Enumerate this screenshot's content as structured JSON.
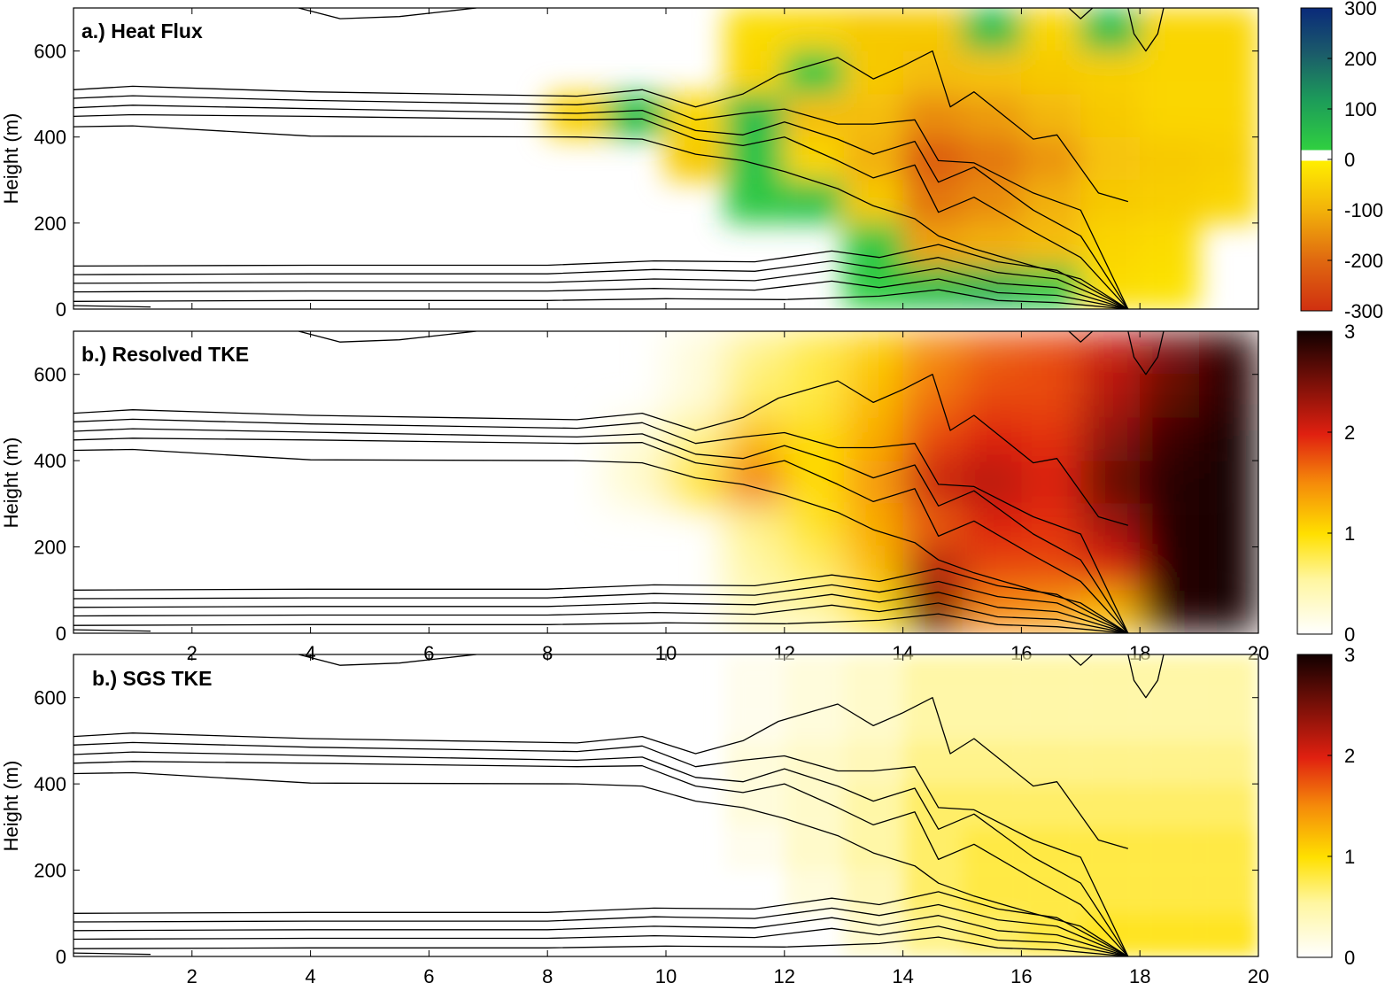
{
  "chart_data": [
    {
      "type": "heatmap",
      "title": "a.) Heat Flux",
      "ylabel": "Height (m)",
      "xlabel": "",
      "xlim": [
        0,
        20
      ],
      "ylim": [
        0,
        700
      ],
      "xticks": [],
      "yticks": [
        0,
        200,
        400,
        600
      ],
      "colorbar": {
        "scheme": "diverging-red-yellow-green-blue",
        "range": [
          -300,
          300
        ],
        "ticks": [
          300,
          200,
          100,
          0,
          -100,
          -200,
          -300
        ]
      },
      "field_x": [
        8.5,
        9.5,
        10.5,
        11.5,
        12.5,
        13.5,
        14.5,
        15.5,
        16.5,
        17.5,
        18.5,
        19.5
      ],
      "field_y": [
        50,
        150,
        250,
        350,
        450,
        550,
        650
      ],
      "field": [
        [
          0,
          0,
          0,
          0,
          0,
          10,
          40,
          60,
          20,
          -30,
          -20,
          0
        ],
        [
          0,
          0,
          0,
          0,
          0,
          20,
          -120,
          -100,
          -80,
          -40,
          -30,
          0
        ],
        [
          0,
          0,
          0,
          20,
          30,
          -60,
          -180,
          -150,
          -100,
          -60,
          -50,
          -40
        ],
        [
          0,
          0,
          -60,
          30,
          -40,
          -100,
          -220,
          -180,
          -140,
          -70,
          -60,
          -50
        ],
        [
          -50,
          40,
          -40,
          40,
          -80,
          -80,
          -150,
          -130,
          -90,
          -60,
          -40,
          -40
        ],
        [
          0,
          0,
          0,
          -40,
          20,
          -60,
          -80,
          -70,
          -60,
          -50,
          -40,
          -40
        ],
        [
          0,
          0,
          0,
          -30,
          -40,
          -60,
          -60,
          40,
          -40,
          40,
          -40,
          -40
        ]
      ]
    },
    {
      "type": "heatmap",
      "title": "b.) Resolved TKE",
      "ylabel": "Height (m)",
      "xlabel": "",
      "xlim": [
        0,
        20
      ],
      "ylim": [
        0,
        700
      ],
      "xticks": [
        2,
        4,
        6,
        8,
        10,
        12,
        14,
        16,
        18,
        20
      ],
      "yticks": [
        0,
        200,
        400,
        600
      ],
      "colorbar": {
        "scheme": "hot-reversed",
        "range": [
          0,
          3
        ],
        "ticks": [
          3,
          2,
          1,
          0
        ]
      },
      "field_x": [
        8.5,
        9.5,
        10.5,
        11.5,
        12.5,
        13.5,
        14.5,
        15.5,
        16.5,
        17.5,
        18.5,
        19.5
      ],
      "field_y": [
        50,
        150,
        250,
        350,
        450,
        550,
        650
      ],
      "field": [
        [
          0,
          0,
          0,
          0.4,
          0.5,
          0.9,
          2.6,
          1.5,
          1.4,
          1.2,
          2.9,
          3.0
        ],
        [
          0,
          0,
          0,
          0.5,
          0.7,
          1.2,
          2.2,
          1.8,
          1.8,
          2.0,
          2.9,
          3.0
        ],
        [
          0,
          0,
          0,
          0.6,
          0.9,
          1.3,
          1.7,
          2.0,
          1.9,
          2.3,
          2.9,
          3.0
        ],
        [
          0,
          0.3,
          0.9,
          1.6,
          1.0,
          1.4,
          2.1,
          2.2,
          2.0,
          2.6,
          2.9,
          3.0
        ],
        [
          0,
          0.2,
          0.6,
          1.2,
          1.0,
          1.3,
          1.8,
          2.0,
          1.9,
          2.4,
          2.8,
          3.0
        ],
        [
          0,
          0,
          0.2,
          0.7,
          0.8,
          1.2,
          1.6,
          1.8,
          1.8,
          2.2,
          2.6,
          2.9
        ],
        [
          0,
          0,
          0.2,
          0.6,
          0.8,
          1.1,
          1.5,
          1.7,
          1.8,
          2.1,
          2.5,
          2.9
        ]
      ]
    },
    {
      "type": "heatmap",
      "title": "b.) SGS TKE",
      "ylabel": "Height (m)",
      "xlabel": "",
      "xlim": [
        0,
        20
      ],
      "ylim": [
        0,
        700
      ],
      "xticks": [
        2,
        4,
        6,
        8,
        10,
        12,
        14,
        16,
        18,
        20
      ],
      "yticks": [
        0,
        200,
        400,
        600
      ],
      "colorbar": {
        "scheme": "hot-reversed",
        "range": [
          0,
          3
        ],
        "ticks": [
          3,
          2,
          1,
          0
        ]
      },
      "field_x": [
        11.5,
        12.5,
        13.5,
        14.5,
        15.5,
        16.5,
        17.5,
        18.5,
        19.5
      ],
      "field_y": [
        50,
        150,
        250,
        350,
        450,
        550,
        650
      ],
      "field": [
        [
          0,
          0,
          0.3,
          0.6,
          0.7,
          0.8,
          0.9,
          0.9,
          0.9
        ],
        [
          0,
          0.2,
          0.4,
          0.7,
          0.8,
          0.8,
          0.8,
          0.8,
          0.8
        ],
        [
          0.1,
          0.3,
          0.5,
          0.7,
          0.8,
          0.8,
          0.8,
          0.8,
          0.8
        ],
        [
          0.2,
          0.3,
          0.5,
          0.7,
          0.7,
          0.7,
          0.7,
          0.7,
          0.7
        ],
        [
          0.2,
          0.3,
          0.4,
          0.6,
          0.6,
          0.6,
          0.6,
          0.6,
          0.6
        ],
        [
          0.1,
          0.2,
          0.3,
          0.5,
          0.5,
          0.5,
          0.5,
          0.5,
          0.5
        ],
        [
          0.1,
          0.2,
          0.3,
          0.5,
          0.5,
          0.5,
          0.5,
          0.5,
          0.5
        ]
      ]
    }
  ],
  "isolines": {
    "series": [
      {
        "x": [
          0,
          1,
          4,
          8.5,
          9.6,
          10.5,
          11.3,
          11.9,
          12.9,
          13.5,
          14.0,
          14.5,
          14.8,
          15.2,
          16.2,
          16.6,
          17.3,
          17.8
        ],
        "y": [
          510,
          518,
          505,
          495,
          510,
          470,
          500,
          545,
          585,
          535,
          565,
          600,
          470,
          505,
          395,
          405,
          270,
          250
        ]
      },
      {
        "x": [
          0,
          1,
          4,
          8.5,
          9.6,
          10.5,
          11.3,
          12.0,
          12.9,
          13.5,
          14.2,
          14.6,
          15.2,
          16.2,
          17.0,
          17.8
        ],
        "y": [
          490,
          496,
          485,
          475,
          488,
          440,
          455,
          465,
          430,
          430,
          440,
          345,
          340,
          270,
          230,
          0
        ]
      },
      {
        "x": [
          0,
          1,
          4,
          8.5,
          9.6,
          10.5,
          11.3,
          12.0,
          12.9,
          13.5,
          14.2,
          14.6,
          15.2,
          16.2,
          17.0,
          17.8
        ],
        "y": [
          468,
          474,
          466,
          455,
          462,
          415,
          405,
          435,
          395,
          360,
          390,
          295,
          330,
          230,
          170,
          0
        ]
      },
      {
        "x": [
          0,
          1,
          4,
          8.5,
          9.6,
          10.5,
          11.3,
          12.0,
          12.9,
          13.5,
          14.2,
          14.6,
          15.2,
          16.2,
          17.0,
          17.8
        ],
        "y": [
          448,
          452,
          448,
          440,
          442,
          395,
          380,
          400,
          345,
          305,
          335,
          225,
          260,
          180,
          120,
          0
        ]
      },
      {
        "x": [
          0,
          1,
          4,
          8.5,
          9.6,
          10.5,
          11.3,
          12.0,
          12.9,
          13.5,
          14.2,
          14.6,
          15.2,
          16.2,
          17.0,
          17.8
        ],
        "y": [
          424,
          426,
          402,
          400,
          395,
          360,
          345,
          320,
          280,
          240,
          210,
          170,
          140,
          100,
          70,
          0
        ]
      },
      {
        "x": [
          0,
          4,
          8,
          9.8,
          11.5,
          12.8,
          13.6,
          14.6,
          15.6,
          16.6,
          17.8
        ],
        "y": [
          100,
          102,
          102,
          112,
          110,
          135,
          120,
          150,
          110,
          90,
          0
        ]
      },
      {
        "x": [
          0,
          4,
          8,
          9.8,
          11.5,
          12.8,
          13.6,
          14.6,
          15.6,
          16.6,
          17.8
        ],
        "y": [
          80,
          82,
          82,
          92,
          88,
          112,
          95,
          120,
          85,
          70,
          0
        ]
      },
      {
        "x": [
          0,
          4,
          8,
          9.8,
          11.5,
          12.8,
          13.6,
          14.6,
          15.6,
          16.6,
          17.8
        ],
        "y": [
          60,
          62,
          62,
          70,
          66,
          90,
          72,
          95,
          60,
          50,
          0
        ]
      },
      {
        "x": [
          0,
          4,
          8,
          9.8,
          11.5,
          12.8,
          13.6,
          14.6,
          15.6,
          16.6,
          17.8
        ],
        "y": [
          40,
          42,
          42,
          48,
          44,
          65,
          50,
          70,
          38,
          32,
          0
        ]
      },
      {
        "x": [
          0,
          4,
          8,
          10,
          12,
          13.6,
          14.6,
          15.6,
          16.6,
          17.8
        ],
        "y": [
          18,
          20,
          20,
          24,
          22,
          30,
          45,
          20,
          15,
          0
        ]
      },
      {
        "x": [
          0,
          1.3
        ],
        "y": [
          8,
          5
        ]
      },
      {
        "x": [
          3.8,
          4.5,
          5.5,
          6.8
        ],
        "y": [
          700,
          675,
          680,
          700
        ]
      },
      {
        "x": [
          17.8,
          17.9,
          18.1,
          18.3,
          18.4
        ],
        "y": [
          700,
          640,
          600,
          640,
          700
        ]
      },
      {
        "x": [
          16.8,
          17.0,
          17.2
        ],
        "y": [
          700,
          675,
          700
        ]
      }
    ]
  }
}
